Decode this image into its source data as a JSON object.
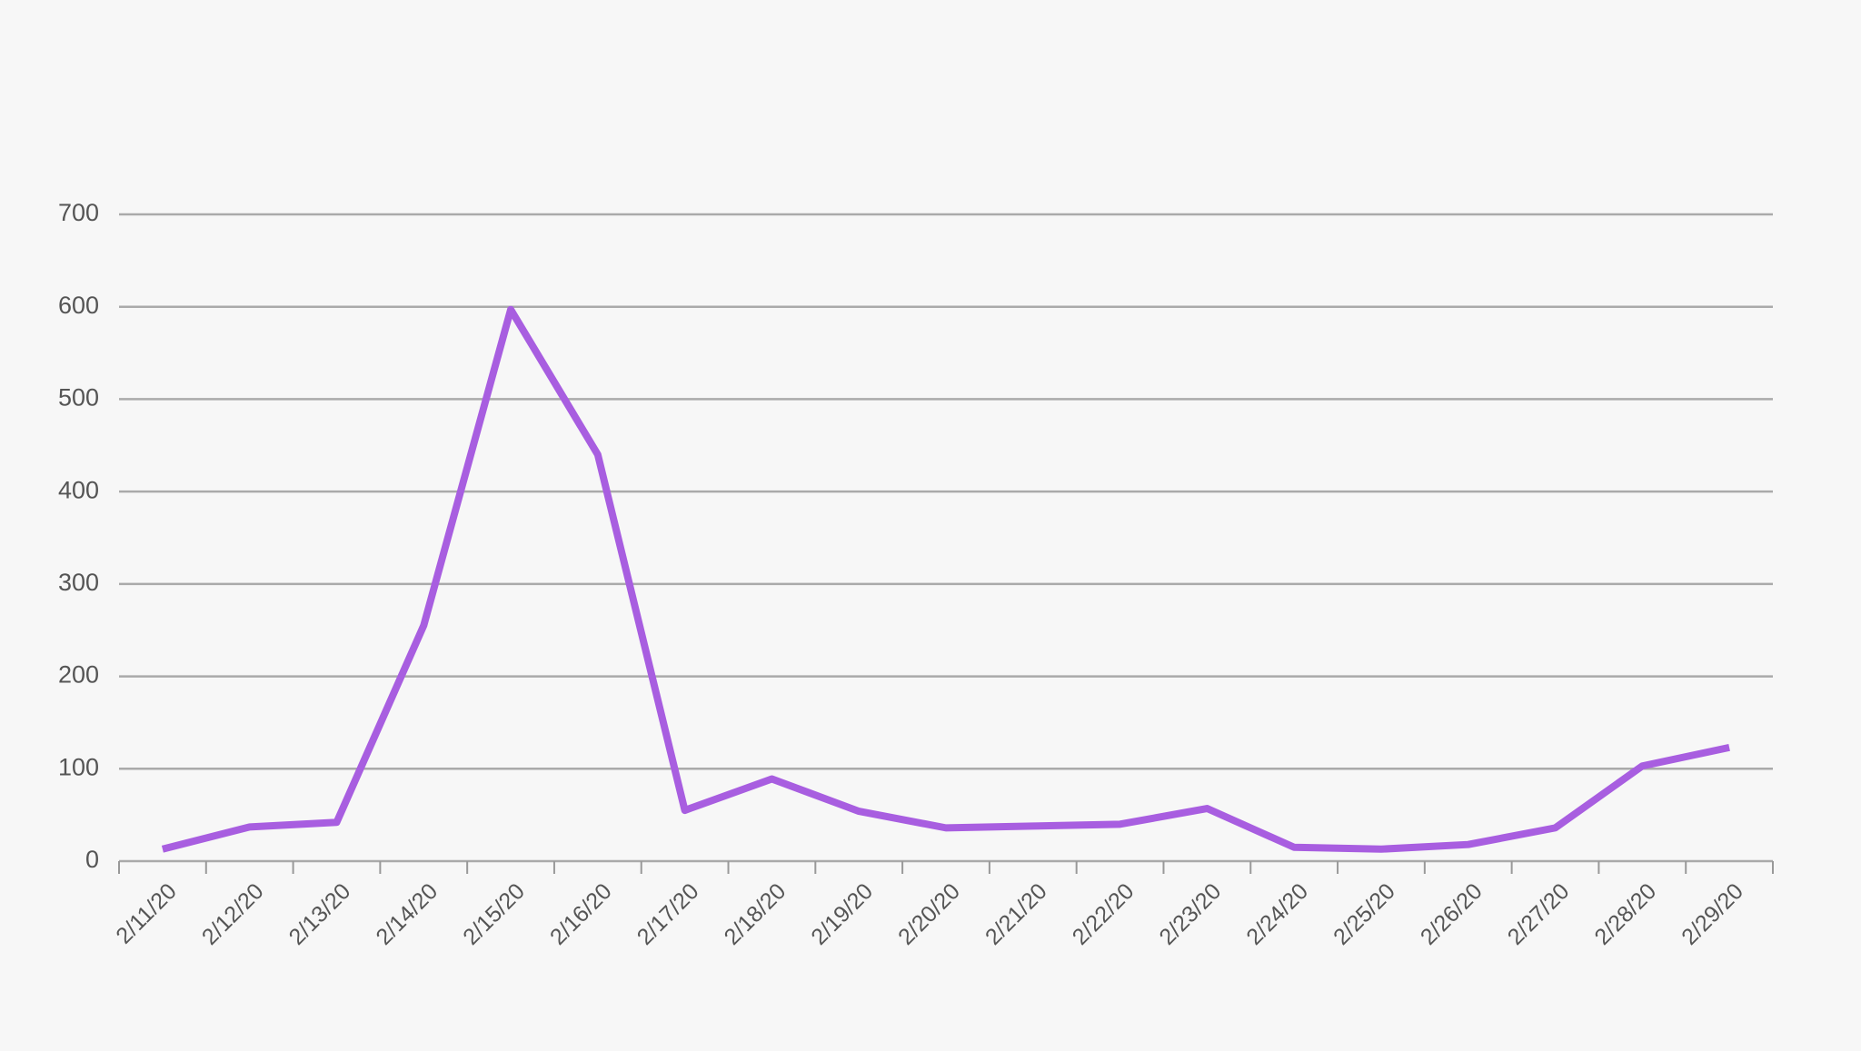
{
  "chart_data": {
    "type": "line",
    "categories": [
      "2/11/20",
      "2/12/20",
      "2/13/20",
      "2/14/20",
      "2/15/20",
      "2/16/20",
      "2/17/20",
      "2/18/20",
      "2/19/20",
      "2/20/20",
      "2/21/20",
      "2/22/20",
      "2/23/20",
      "2/24/20",
      "2/25/20",
      "2/26/20",
      "2/27/20",
      "2/28/20",
      "2/29/20"
    ],
    "series": [
      {
        "color": "#a85ee0",
        "values": [
          13,
          37,
          42,
          255,
          597,
          440,
          55,
          89,
          54,
          36,
          38,
          40,
          57,
          15,
          13,
          18,
          36,
          103,
          123
        ]
      }
    ],
    "ylim": [
      0,
      700
    ],
    "yticks": [
      0,
      100,
      200,
      300,
      400,
      500,
      600,
      700
    ],
    "grid": true
  }
}
